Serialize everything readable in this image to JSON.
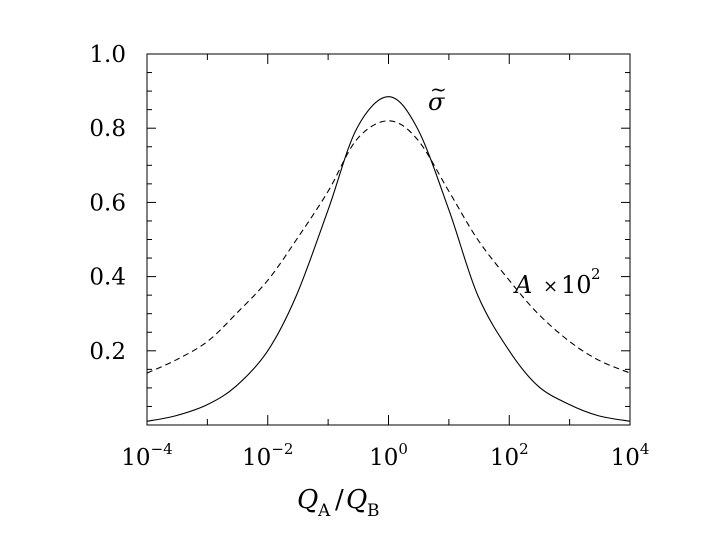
{
  "chart_data": {
    "type": "line",
    "title": "",
    "xlabel": {
      "main": "Q",
      "sub_a": "A",
      "slash": "/",
      "sub_b": "B"
    },
    "ylabel": "",
    "xscale": "log",
    "xlim": [
      0.0001,
      10000
    ],
    "ylim": [
      0,
      1.0
    ],
    "grid": false,
    "x_ticks": [
      {
        "base": "10",
        "exp": "−4",
        "value": 0.0001
      },
      {
        "base": "10",
        "exp": "−2",
        "value": 0.01
      },
      {
        "base": "10",
        "exp": "0",
        "value": 1
      },
      {
        "base": "10",
        "exp": "2",
        "value": 100
      },
      {
        "base": "10",
        "exp": "4",
        "value": 10000
      }
    ],
    "y_ticks": [
      {
        "label": "0.2",
        "value": 0.2
      },
      {
        "label": "0.4",
        "value": 0.4
      },
      {
        "label": "0.6",
        "value": 0.6
      },
      {
        "label": "0.8",
        "value": 0.8
      },
      {
        "label": "1.0",
        "value": 1.0
      }
    ],
    "series": [
      {
        "name": "σ̃",
        "label_parts": {
          "symbol": "σ",
          "tilde": "~"
        },
        "style": "solid",
        "color": "#000000",
        "x": [
          0.0001,
          0.0003,
          0.001,
          0.003,
          0.01,
          0.03,
          0.1,
          0.3,
          1,
          3,
          10,
          30,
          100,
          300,
          1000,
          3000,
          10000
        ],
        "values": [
          0.01,
          0.025,
          0.055,
          0.105,
          0.2,
          0.35,
          0.58,
          0.8,
          0.885,
          0.8,
          0.58,
          0.35,
          0.2,
          0.105,
          0.055,
          0.025,
          0.01
        ]
      },
      {
        "name": "𝒜 × 10²",
        "label_parts": {
          "symbol": "A",
          "times": "×",
          "base": "10",
          "exp": "2"
        },
        "style": "dashed",
        "color": "#000000",
        "x": [
          0.0001,
          0.0003,
          0.001,
          0.003,
          0.01,
          0.03,
          0.1,
          0.3,
          1,
          3,
          10,
          30,
          100,
          300,
          1000,
          3000,
          10000
        ],
        "values": [
          0.14,
          0.175,
          0.225,
          0.3,
          0.39,
          0.5,
          0.63,
          0.77,
          0.82,
          0.77,
          0.63,
          0.5,
          0.39,
          0.3,
          0.225,
          0.175,
          0.14
        ]
      }
    ]
  }
}
